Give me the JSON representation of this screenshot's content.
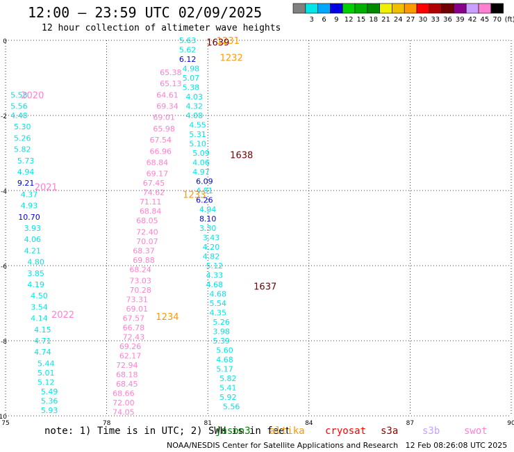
{
  "header": {
    "title": "12:00 — 23:59 UTC 02/09/2025",
    "subtitle": "12 hour collection of altimeter wave heights"
  },
  "colorbar": {
    "unit": "(ft)",
    "bins": [
      {
        "label": "",
        "color": "#808080"
      },
      {
        "label": "3",
        "color": "#00e5e5"
      },
      {
        "label": "6",
        "color": "#00a8ff"
      },
      {
        "label": "9",
        "color": "#0000e0"
      },
      {
        "label": "12",
        "color": "#00d000"
      },
      {
        "label": "15",
        "color": "#00b000"
      },
      {
        "label": "18",
        "color": "#008a00"
      },
      {
        "label": "21",
        "color": "#f0f000"
      },
      {
        "label": "24",
        "color": "#f0c000"
      },
      {
        "label": "27",
        "color": "#ff9900"
      },
      {
        "label": "30",
        "color": "#ff0000"
      },
      {
        "label": "33",
        "color": "#b00000"
      },
      {
        "label": "36",
        "color": "#700000"
      },
      {
        "label": "39",
        "color": "#8b008b"
      },
      {
        "label": "42",
        "color": "#c8a0ff"
      },
      {
        "label": "45",
        "color": "#ff80d0"
      },
      {
        "label": "70",
        "color": "#000000"
      }
    ]
  },
  "note": "note: 1) Time is in UTC; 2) SWH is in feet",
  "credit": "NOAA/NESDIS Center for Satellite Applications and Research   12 Feb 08:26:08 UTC 2025",
  "satellites": [
    {
      "name": "jason3",
      "color": "#008000"
    },
    {
      "name": "altika",
      "color": "#ff9900"
    },
    {
      "name": "cryosat",
      "color": "#ff0000"
    },
    {
      "name": "s3a",
      "color": "#8b0000"
    },
    {
      "name": "s3b",
      "color": "#c8a0ff"
    },
    {
      "name": "swot",
      "color": "#ff80d0"
    }
  ],
  "chart_data": {
    "type": "scatter",
    "title": "12:00 — 23:59 UTC 02/09/2025",
    "xlim": [
      75,
      90
    ],
    "ylim": [
      -10,
      0
    ],
    "xticks": [
      "75",
      "78",
      "81",
      "84",
      "87",
      "90"
    ],
    "yticks": [
      "0",
      "-2",
      "-4",
      "-6",
      "-8",
      "-10"
    ],
    "grid": true,
    "pass_labels": [
      {
        "text": "1231",
        "x": 81.6,
        "y": 0.0,
        "color": "#ff9900"
      },
      {
        "text": "1639",
        "x": 81.3,
        "y": -0.05,
        "color": "#700000"
      },
      {
        "text": "1232",
        "x": 81.7,
        "y": -0.45,
        "color": "#ff9900"
      },
      {
        "text": "2020",
        "x": 75.8,
        "y": -1.45,
        "color": "#ff80d0"
      },
      {
        "text": "1638",
        "x": 82.0,
        "y": -3.05,
        "color": "#700000"
      },
      {
        "text": "2021",
        "x": 76.2,
        "y": -3.9,
        "color": "#ff80d0"
      },
      {
        "text": "1233",
        "x": 80.6,
        "y": -4.1,
        "color": "#ff9900"
      },
      {
        "text": "1637",
        "x": 82.7,
        "y": -6.55,
        "color": "#700000"
      },
      {
        "text": "2022",
        "x": 76.7,
        "y": -7.3,
        "color": "#ff80d0"
      },
      {
        "text": "1234",
        "x": 79.8,
        "y": -7.35,
        "color": "#ff9900"
      }
    ],
    "series": [
      {
        "name": "track-a",
        "points": [
          {
            "x": 75.4,
            "y": -1.45,
            "v": "5.58",
            "c": "#00e5e5"
          },
          {
            "x": 75.4,
            "y": -1.75,
            "v": "5.56",
            "c": "#00e5e5"
          },
          {
            "x": 75.4,
            "y": -2.0,
            "v": "4.48",
            "c": "#00e5e5"
          },
          {
            "x": 75.5,
            "y": -2.3,
            "v": "5.30",
            "c": "#00e5e5"
          },
          {
            "x": 75.5,
            "y": -2.6,
            "v": "5.26",
            "c": "#00e5e5"
          },
          {
            "x": 75.5,
            "y": -2.9,
            "v": "5.82",
            "c": "#00e5e5"
          },
          {
            "x": 75.6,
            "y": -3.2,
            "v": "5.73",
            "c": "#00e5e5"
          },
          {
            "x": 75.6,
            "y": -3.5,
            "v": "4.94",
            "c": "#00e5e5"
          },
          {
            "x": 75.6,
            "y": -3.8,
            "v": "9.21",
            "c": "#0000e0"
          },
          {
            "x": 75.7,
            "y": -4.1,
            "v": "4.37",
            "c": "#00e5e5"
          },
          {
            "x": 75.7,
            "y": -4.4,
            "v": "4.93",
            "c": "#00e5e5"
          },
          {
            "x": 75.7,
            "y": -4.7,
            "v": "10.70",
            "c": "#0000e0"
          },
          {
            "x": 75.8,
            "y": -5.0,
            "v": "3.93",
            "c": "#00e5e5"
          },
          {
            "x": 75.8,
            "y": -5.3,
            "v": "4.06",
            "c": "#00e5e5"
          },
          {
            "x": 75.8,
            "y": -5.6,
            "v": "4.21",
            "c": "#00e5e5"
          },
          {
            "x": 75.9,
            "y": -5.9,
            "v": "4.80",
            "c": "#00e5e5"
          },
          {
            "x": 75.9,
            "y": -6.2,
            "v": "3.85",
            "c": "#00e5e5"
          },
          {
            "x": 75.9,
            "y": -6.5,
            "v": "4.19",
            "c": "#00e5e5"
          },
          {
            "x": 76.0,
            "y": -6.8,
            "v": "4.50",
            "c": "#00e5e5"
          },
          {
            "x": 76.0,
            "y": -7.1,
            "v": "3.54",
            "c": "#00e5e5"
          },
          {
            "x": 76.0,
            "y": -7.4,
            "v": "4.14",
            "c": "#00e5e5"
          },
          {
            "x": 76.1,
            "y": -7.7,
            "v": "4.15",
            "c": "#00e5e5"
          },
          {
            "x": 76.1,
            "y": -8.0,
            "v": "4.71",
            "c": "#00e5e5"
          },
          {
            "x": 76.1,
            "y": -8.3,
            "v": "4.74",
            "c": "#00e5e5"
          },
          {
            "x": 76.2,
            "y": -8.6,
            "v": "5.44",
            "c": "#00e5e5"
          },
          {
            "x": 76.2,
            "y": -8.85,
            "v": "5.01",
            "c": "#00e5e5"
          },
          {
            "x": 76.2,
            "y": -9.1,
            "v": "5.12",
            "c": "#00e5e5"
          },
          {
            "x": 76.3,
            "y": -9.35,
            "v": "5.49",
            "c": "#00e5e5"
          },
          {
            "x": 76.3,
            "y": -9.6,
            "v": "5.36",
            "c": "#00e5e5"
          },
          {
            "x": 76.3,
            "y": -9.85,
            "v": "5.93",
            "c": "#00e5e5"
          }
        ]
      },
      {
        "name": "track-b",
        "points": [
          {
            "x": 79.4,
            "y": -3.8,
            "v": "67.45",
            "c": "#ff80d0"
          },
          {
            "x": 79.4,
            "y": -4.05,
            "v": "74.62",
            "c": "#ff80d0"
          },
          {
            "x": 79.3,
            "y": -4.3,
            "v": "71.11",
            "c": "#ff80d0"
          },
          {
            "x": 79.3,
            "y": -4.55,
            "v": "68.84",
            "c": "#ff80d0"
          },
          {
            "x": 79.2,
            "y": -4.8,
            "v": "68.05",
            "c": "#ff80d0"
          },
          {
            "x": 79.2,
            "y": -5.1,
            "v": "72.40",
            "c": "#ff80d0"
          },
          {
            "x": 79.2,
            "y": -5.35,
            "v": "70.07",
            "c": "#ff80d0"
          },
          {
            "x": 79.1,
            "y": -5.6,
            "v": "68.37",
            "c": "#ff80d0"
          },
          {
            "x": 79.1,
            "y": -5.85,
            "v": "69.88",
            "c": "#ff80d0"
          },
          {
            "x": 79.0,
            "y": -6.1,
            "v": "68.24",
            "c": "#ff80d0"
          },
          {
            "x": 79.0,
            "y": -6.4,
            "v": "73.03",
            "c": "#ff80d0"
          },
          {
            "x": 79.0,
            "y": -6.65,
            "v": "70.28",
            "c": "#ff80d0"
          },
          {
            "x": 78.9,
            "y": -6.9,
            "v": "73.31",
            "c": "#ff80d0"
          },
          {
            "x": 78.9,
            "y": -7.15,
            "v": "69.01",
            "c": "#ff80d0"
          },
          {
            "x": 78.8,
            "y": -7.4,
            "v": "67.57",
            "c": "#ff80d0"
          },
          {
            "x": 78.8,
            "y": -7.65,
            "v": "66.78",
            "c": "#ff80d0"
          },
          {
            "x": 78.8,
            "y": -7.9,
            "v": "72.43",
            "c": "#ff80d0"
          },
          {
            "x": 78.7,
            "y": -8.15,
            "v": "69.26",
            "c": "#ff80d0"
          },
          {
            "x": 78.7,
            "y": -8.4,
            "v": "62.17",
            "c": "#ff80d0"
          },
          {
            "x": 78.6,
            "y": -8.65,
            "v": "72.94",
            "c": "#ff80d0"
          },
          {
            "x": 78.6,
            "y": -8.9,
            "v": "68.18",
            "c": "#ff80d0"
          },
          {
            "x": 78.6,
            "y": -9.15,
            "v": "68.45",
            "c": "#ff80d0"
          },
          {
            "x": 78.5,
            "y": -9.4,
            "v": "68.66",
            "c": "#ff80d0"
          },
          {
            "x": 78.5,
            "y": -9.65,
            "v": "72.00",
            "c": "#ff80d0"
          },
          {
            "x": 78.5,
            "y": -9.9,
            "v": "74.05",
            "c": "#ff80d0"
          }
        ]
      },
      {
        "name": "track-c",
        "points": [
          {
            "x": 79.9,
            "y": -0.85,
            "v": "65.38",
            "c": "#ff80d0"
          },
          {
            "x": 79.9,
            "y": -1.15,
            "v": "65.13",
            "c": "#ff80d0"
          },
          {
            "x": 79.8,
            "y": -1.45,
            "v": "64.61",
            "c": "#ff80d0"
          },
          {
            "x": 79.8,
            "y": -1.75,
            "v": "69.34",
            "c": "#ff80d0"
          },
          {
            "x": 79.7,
            "y": -2.05,
            "v": "69.01",
            "c": "#ff80d0"
          },
          {
            "x": 79.7,
            "y": -2.35,
            "v": "65.98",
            "c": "#ff80d0"
          },
          {
            "x": 79.6,
            "y": -2.65,
            "v": "67.54",
            "c": "#ff80d0"
          },
          {
            "x": 79.6,
            "y": -2.95,
            "v": "66.96",
            "c": "#ff80d0"
          },
          {
            "x": 79.5,
            "y": -3.25,
            "v": "68.84",
            "c": "#ff80d0"
          },
          {
            "x": 79.5,
            "y": -3.55,
            "v": "69.17",
            "c": "#ff80d0"
          }
        ]
      },
      {
        "name": "track-d",
        "points": [
          {
            "x": 80.4,
            "y": 0.0,
            "v": "5.63",
            "c": "#00e5e5"
          },
          {
            "x": 80.4,
            "y": -0.25,
            "v": "5.62",
            "c": "#00e5e5"
          },
          {
            "x": 80.4,
            "y": -0.5,
            "v": "6.12",
            "c": "#0000e0"
          },
          {
            "x": 80.5,
            "y": -0.75,
            "v": "4.98",
            "c": "#00e5e5"
          },
          {
            "x": 80.5,
            "y": -1.0,
            "v": "5.07",
            "c": "#00e5e5"
          },
          {
            "x": 80.5,
            "y": -1.25,
            "v": "5.38",
            "c": "#00e5e5"
          },
          {
            "x": 80.6,
            "y": -1.5,
            "v": "4.03",
            "c": "#00e5e5"
          },
          {
            "x": 80.6,
            "y": -1.75,
            "v": "4.32",
            "c": "#00e5e5"
          },
          {
            "x": 80.6,
            "y": -2.0,
            "v": "4.08",
            "c": "#00e5e5"
          },
          {
            "x": 80.7,
            "y": -2.25,
            "v": "4.55",
            "c": "#00e5e5"
          },
          {
            "x": 80.7,
            "y": -2.5,
            "v": "5.31",
            "c": "#00e5e5"
          },
          {
            "x": 80.7,
            "y": -2.75,
            "v": "5.10",
            "c": "#00e5e5"
          },
          {
            "x": 80.8,
            "y": -3.0,
            "v": "5.09",
            "c": "#00e5e5"
          },
          {
            "x": 80.8,
            "y": -3.25,
            "v": "4.06",
            "c": "#00e5e5"
          },
          {
            "x": 80.8,
            "y": -3.5,
            "v": "4.97",
            "c": "#00e5e5"
          },
          {
            "x": 80.9,
            "y": -3.75,
            "v": "6.09",
            "c": "#0000e0"
          },
          {
            "x": 80.9,
            "y": -4.0,
            "v": "4.81",
            "c": "#00e5e5"
          },
          {
            "x": 80.9,
            "y": -4.25,
            "v": "6.26",
            "c": "#0000e0"
          },
          {
            "x": 81.0,
            "y": -4.5,
            "v": "4.94",
            "c": "#00e5e5"
          },
          {
            "x": 81.0,
            "y": -4.75,
            "v": "8.10",
            "c": "#0000e0"
          },
          {
            "x": 81.0,
            "y": -5.0,
            "v": "3.30",
            "c": "#00e5e5"
          },
          {
            "x": 81.1,
            "y": -5.25,
            "v": "3.43",
            "c": "#00e5e5"
          },
          {
            "x": 81.1,
            "y": -5.5,
            "v": "4.20",
            "c": "#00e5e5"
          },
          {
            "x": 81.1,
            "y": -5.75,
            "v": "4.82",
            "c": "#00e5e5"
          },
          {
            "x": 81.2,
            "y": -6.0,
            "v": "5.12",
            "c": "#00e5e5"
          },
          {
            "x": 81.2,
            "y": -6.25,
            "v": "4.33",
            "c": "#00e5e5"
          },
          {
            "x": 81.2,
            "y": -6.5,
            "v": "4.68",
            "c": "#00e5e5"
          },
          {
            "x": 81.3,
            "y": -6.75,
            "v": "4.68",
            "c": "#00e5e5"
          },
          {
            "x": 81.3,
            "y": -7.0,
            "v": "5.54",
            "c": "#00e5e5"
          },
          {
            "x": 81.3,
            "y": -7.25,
            "v": "4.35",
            "c": "#00e5e5"
          },
          {
            "x": 81.4,
            "y": -7.5,
            "v": "5.26",
            "c": "#00e5e5"
          },
          {
            "x": 81.4,
            "y": -7.75,
            "v": "3.98",
            "c": "#00e5e5"
          },
          {
            "x": 81.4,
            "y": -8.0,
            "v": "5.39",
            "c": "#00e5e5"
          },
          {
            "x": 81.5,
            "y": -8.25,
            "v": "5.60",
            "c": "#00e5e5"
          },
          {
            "x": 81.5,
            "y": -8.5,
            "v": "4.68",
            "c": "#00e5e5"
          },
          {
            "x": 81.5,
            "y": -8.75,
            "v": "5.17",
            "c": "#00e5e5"
          },
          {
            "x": 81.6,
            "y": -9.0,
            "v": "5.82",
            "c": "#00e5e5"
          },
          {
            "x": 81.6,
            "y": -9.25,
            "v": "5.41",
            "c": "#00e5e5"
          },
          {
            "x": 81.6,
            "y": -9.5,
            "v": "5.92",
            "c": "#00e5e5"
          },
          {
            "x": 81.7,
            "y": -9.75,
            "v": "5.56",
            "c": "#00e5e5"
          }
        ]
      }
    ]
  }
}
